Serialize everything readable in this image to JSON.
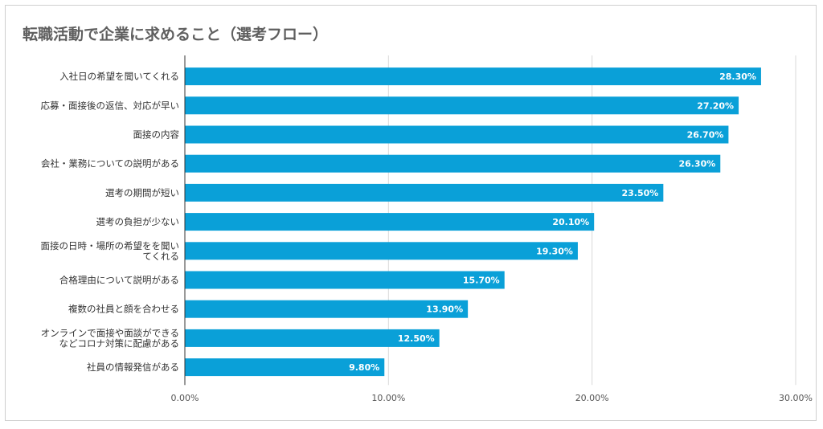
{
  "chart_data": {
    "type": "bar",
    "orientation": "horizontal",
    "title": "転職活動で企業に求めること（選考フロー）",
    "categories": [
      [
        "入社日の希望を聞いてくれる"
      ],
      [
        "応募・面接後の返信、対応が早い"
      ],
      [
        "面接の内容"
      ],
      [
        "会社・業務についての説明がある"
      ],
      [
        "選考の期間が短い"
      ],
      [
        "選考の負担が少ない"
      ],
      [
        "面接の日時・場所の希望をを聞い",
        "てくれる"
      ],
      [
        "合格理由について説明がある"
      ],
      [
        "複数の社員と顔を合わせる"
      ],
      [
        "オンラインで面接や面談ができる",
        "などコロナ対策に配慮がある"
      ],
      [
        "社員の情報発信がある"
      ]
    ],
    "values": [
      28.3,
      27.2,
      26.7,
      26.3,
      23.5,
      20.1,
      19.3,
      15.7,
      13.9,
      12.5,
      9.8
    ],
    "value_labels": [
      "28.30%",
      "27.20%",
      "26.70%",
      "26.30%",
      "23.50%",
      "20.10%",
      "19.30%",
      "15.70%",
      "13.90%",
      "12.50%",
      "9.80%"
    ],
    "xlim": [
      0,
      30
    ],
    "xticks": [
      0,
      10,
      20,
      30
    ],
    "xtick_labels": [
      "0.00%",
      "10.00%",
      "20.00%",
      "30.00%"
    ],
    "grid": true,
    "bar_color": "#0aa0d8",
    "label_color": "#ffffff"
  }
}
